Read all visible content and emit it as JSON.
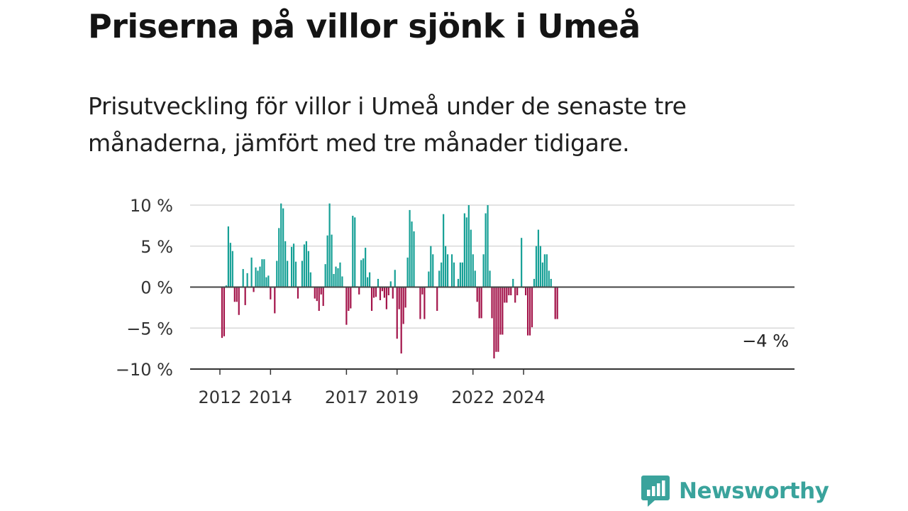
{
  "title": "Priserna på villor sjönk i Umeå",
  "subtitle": "Prisutveckling för villor i Umeå under de senaste tre månaderna, jämfört med tre månader tidigare.",
  "brand": {
    "name": "Newsworthy",
    "icon": "newsworthy-logo-icon",
    "color": "#3aa39c"
  },
  "colors": {
    "positive": "#16a096",
    "negative": "#a3144a",
    "grid": "#d9d9d9",
    "zero_line": "#444444"
  },
  "chart_data": {
    "type": "bar",
    "title": "Priserna på villor sjönk i Umeå",
    "subtitle": "Prisutveckling för villor i Umeå under de senaste tre månaderna, jämfört med tre månader tidigare.",
    "xlabel": "",
    "ylabel": "",
    "unit": "%",
    "ylim": [
      -10,
      10
    ],
    "yticks": [
      10,
      5,
      0,
      -5,
      -10
    ],
    "ytick_labels": [
      "10 %",
      "5 %",
      "0 %",
      "−5 %",
      "−10 %"
    ],
    "xticks": [
      {
        "label": "2012",
        "index": 0
      },
      {
        "label": "2014",
        "index": 24
      },
      {
        "label": "2017",
        "index": 60
      },
      {
        "label": "2019",
        "index": 84
      },
      {
        "label": "2022",
        "index": 120
      },
      {
        "label": "2024",
        "index": 144
      }
    ],
    "grid": true,
    "last_value_label": "−4 %",
    "start": "2012-01",
    "frequency": "monthly",
    "values": [
      0,
      -6.2,
      -6,
      0.2,
      7.4,
      5.4,
      4.4,
      -1.8,
      -1.8,
      -3.4,
      0,
      2.2,
      -2.2,
      1.7,
      0,
      3.6,
      -0.6,
      2.4,
      2,
      2.5,
      3.4,
      3.4,
      1.2,
      1.4,
      -1.5,
      0,
      -3.2,
      3.2,
      7.2,
      10.2,
      9.6,
      5.6,
      3.2,
      0.1,
      4.9,
      5.3,
      3.1,
      -1.4,
      0,
      3.2,
      5.2,
      5.6,
      4.4,
      1.8,
      0,
      -1.4,
      -1.7,
      -2.9,
      -0.9,
      -2.3,
      2.8,
      6.3,
      10.2,
      6.4,
      1.6,
      2.5,
      2.3,
      3,
      1.3,
      0,
      -4.6,
      -2.9,
      -2.6,
      8.7,
      8.5,
      0.1,
      -0.9,
      3.3,
      3.5,
      4.8,
      1.2,
      1.8,
      -2.9,
      -1.3,
      -1.2,
      1,
      -1.6,
      -0.5,
      -1.3,
      -2.7,
      -1,
      0.7,
      -1.4,
      2.1,
      -6.3,
      -2.7,
      -8.1,
      -4.5,
      -2.5,
      3.6,
      9.4,
      8,
      6.8,
      0,
      0,
      -3.9,
      -0.9,
      -3.9,
      0,
      1.9,
      5,
      4,
      0,
      -2.9,
      2,
      3,
      8.9,
      5,
      4,
      0,
      4,
      3,
      0,
      1,
      3,
      3,
      9,
      8.5,
      10,
      7,
      4,
      2,
      -1.8,
      -3.8,
      -3.8,
      4,
      9,
      10,
      2,
      -3.8,
      -8.7,
      -7.9,
      -7.9,
      -5.8,
      -5.8,
      -1.9,
      -1.9,
      -1,
      -1,
      1,
      -1.9,
      -1,
      0,
      6,
      -0.1,
      -1,
      -5.9,
      -5.9,
      -4.9,
      1,
      5,
      7,
      5,
      3,
      4,
      4,
      2,
      1,
      0,
      -3.9,
      -3.9
    ]
  }
}
